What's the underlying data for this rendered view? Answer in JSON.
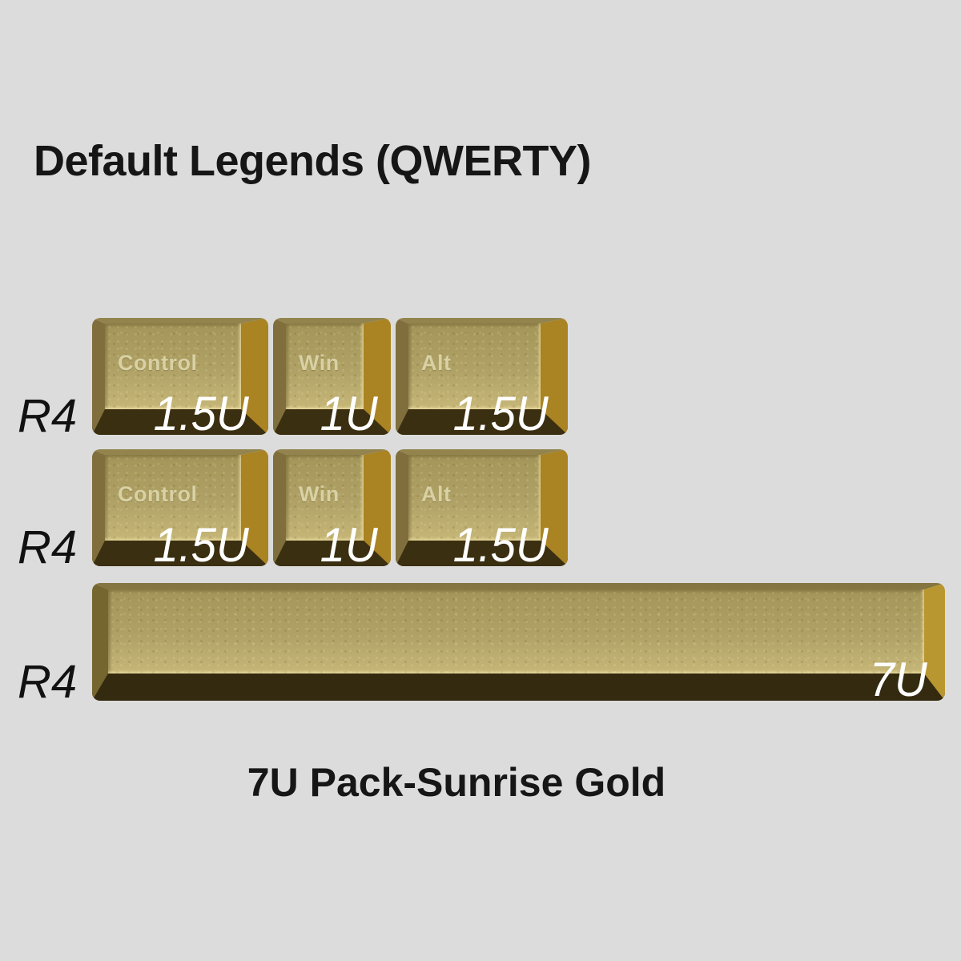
{
  "page": {
    "title": "Default Legends (QWERTY)",
    "caption": "7U Pack-Sunrise Gold",
    "background_color": "#dcdcdc",
    "text_color": "#161616"
  },
  "keycap_colors": {
    "top_face": "#b0a266",
    "face_highlight": "#c6b778",
    "top_bevel": "#93844e",
    "left_bevel": "#806f3c",
    "right_bevel": "#aa8322",
    "bottom_bevel": "#3b2f11",
    "legend_text": "#d8d1a4",
    "size_label_text": "#ffffff",
    "row_label_text": "#111111"
  },
  "rows": [
    {
      "label": "R4",
      "keys": [
        {
          "legend": "Control",
          "size_label": "1.5U"
        },
        {
          "legend": "Win",
          "size_label": "1U"
        },
        {
          "legend": "Alt",
          "size_label": "1.5U"
        }
      ]
    },
    {
      "label": "R4",
      "keys": [
        {
          "legend": "Control",
          "size_label": "1.5U"
        },
        {
          "legend": "Win",
          "size_label": "1U"
        },
        {
          "legend": "Alt",
          "size_label": "1.5U"
        }
      ]
    },
    {
      "label": "R4",
      "keys": [
        {
          "legend": "",
          "size_label": "7U"
        }
      ]
    }
  ]
}
